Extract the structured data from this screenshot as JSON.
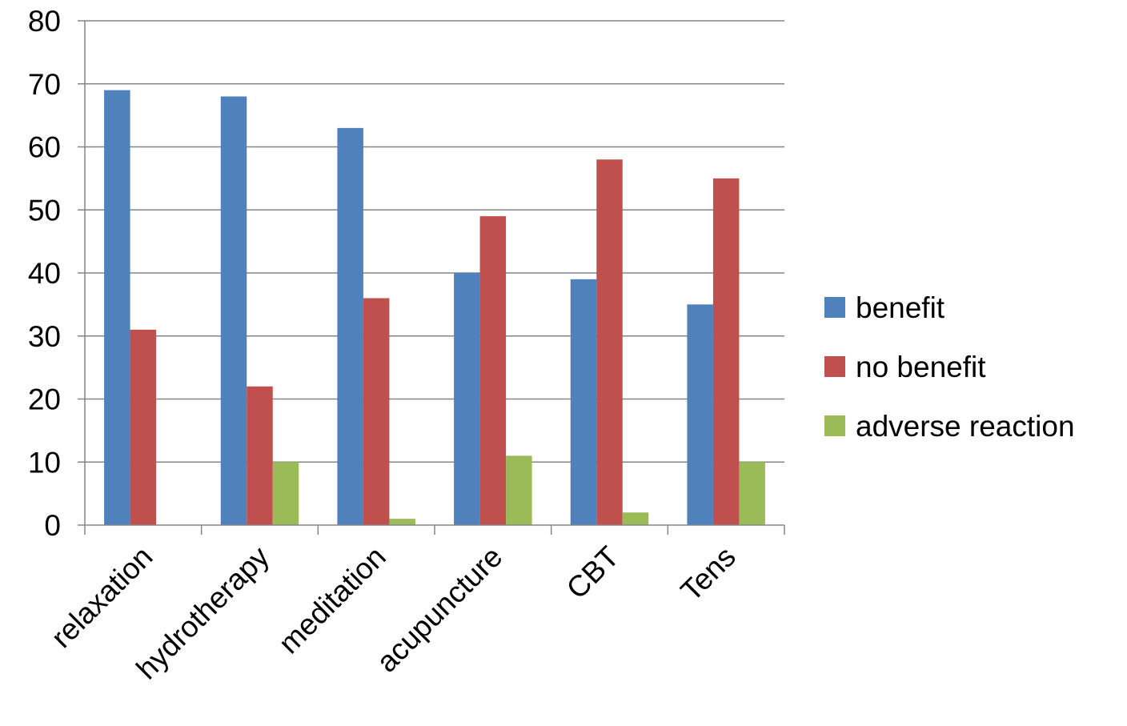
{
  "chart_data": {
    "type": "bar",
    "categories": [
      "relaxation",
      "hydrotherapy",
      "meditation",
      "acupuncture",
      "CBT",
      "Tens"
    ],
    "series": [
      {
        "name": "benefit",
        "color": "#4F81BD",
        "values": [
          69,
          68,
          63,
          40,
          39,
          35
        ]
      },
      {
        "name": "no benefit",
        "color": "#C0504D",
        "values": [
          31,
          22,
          36,
          49,
          58,
          55
        ]
      },
      {
        "name": "adverse reaction",
        "color": "#9BBB59",
        "values": [
          0,
          10,
          1,
          11,
          2,
          10
        ]
      }
    ],
    "y_ticks": [
      "0",
      "10",
      "20",
      "30",
      "40",
      "50",
      "60",
      "70",
      "80"
    ],
    "ylim": [
      0,
      80
    ],
    "grid": true,
    "legend_position": "right",
    "title": "",
    "xlabel": "",
    "ylabel": ""
  }
}
